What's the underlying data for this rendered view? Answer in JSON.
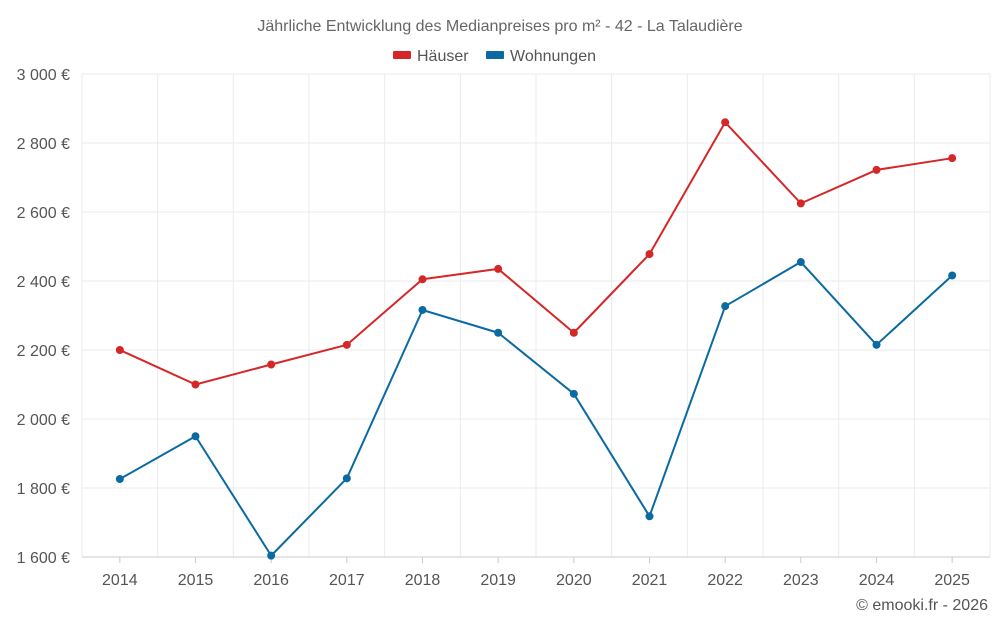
{
  "chart_data": {
    "type": "line",
    "title": "Jährliche Entwicklung des Medianpreises pro m² - 42 - La Talaudière",
    "categories": [
      "2014",
      "2015",
      "2016",
      "2017",
      "2018",
      "2019",
      "2020",
      "2021",
      "2022",
      "2023",
      "2024",
      "2025"
    ],
    "series": [
      {
        "name": "Häuser",
        "color": "#d62728",
        "values": [
          2200,
          2100,
          2158,
          2215,
          2405,
          2435,
          2250,
          2478,
          2860,
          2625,
          2722,
          2756
        ]
      },
      {
        "name": "Wohnungen",
        "color": "#0b6aa2",
        "values": [
          1826,
          1950,
          1604,
          1828,
          2316,
          2250,
          2073,
          1718,
          2327,
          2455,
          2215,
          2416
        ]
      }
    ],
    "ylim": [
      1600,
      3000
    ],
    "yticks": [
      1600,
      1800,
      2000,
      2200,
      2400,
      2600,
      2800,
      3000
    ],
    "ytick_labels": [
      "1 600 €",
      "1 800 €",
      "2 000 €",
      "2 200 €",
      "2 400 €",
      "2 600 €",
      "2 800 €",
      "3 000 €"
    ],
    "xlabel": "",
    "ylabel": "",
    "legend_position": "top-center",
    "grid": true
  },
  "credit": "© emooki.fr - 2026"
}
